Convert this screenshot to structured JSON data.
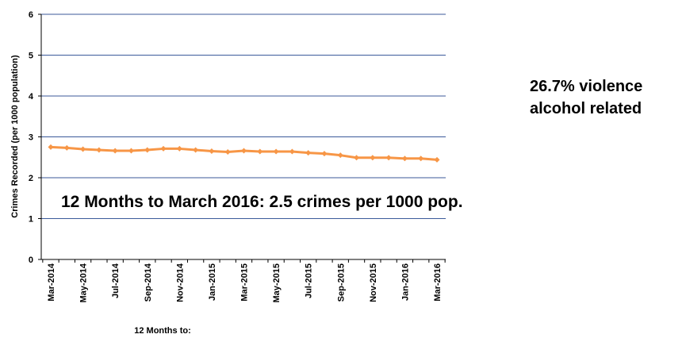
{
  "chart_data": {
    "type": "line",
    "xlabel": "12 Months to:",
    "ylabel": "Crimes Recorded (per 1000 population)",
    "ylim": [
      0,
      6
    ],
    "yticks": [
      "0",
      "1",
      "2",
      "3",
      "4",
      "5",
      "6"
    ],
    "grid": true,
    "categories": [
      "Mar-2014",
      "Apr-2014",
      "May-2014",
      "Jun-2014",
      "Jul-2014",
      "Aug-2014",
      "Sep-2014",
      "Oct-2014",
      "Nov-2014",
      "Dec-2014",
      "Jan-2015",
      "Feb-2015",
      "Mar-2015",
      "Apr-2015",
      "May-2015",
      "Jun-2015",
      "Jul-2015",
      "Aug-2015",
      "Sep-2015",
      "Oct-2015",
      "Nov-2015",
      "Dec-2015",
      "Jan-2016",
      "Feb-2016",
      "Mar-2016"
    ],
    "tick_labels": [
      "Mar-2014",
      "May-2014",
      "Jul-2014",
      "Sep-2014",
      "Nov-2014",
      "Jan-2015",
      "Mar-2015",
      "May-2015",
      "Jul-2015",
      "Sep-2015",
      "Nov-2015",
      "Jan-2016",
      "Mar-2016"
    ],
    "series": [
      {
        "color": "#f79646",
        "values": [
          2.75,
          2.73,
          2.7,
          2.68,
          2.66,
          2.66,
          2.68,
          2.71,
          2.71,
          2.68,
          2.65,
          2.63,
          2.66,
          2.64,
          2.64,
          2.64,
          2.61,
          2.59,
          2.55,
          2.49,
          2.49,
          2.49,
          2.47,
          2.47,
          2.44
        ]
      }
    ],
    "annotations": {
      "main": "12 Months to March 2016: 2.5 crimes per 1000 pop.",
      "side_line1": "26.7% violence",
      "side_line2": "alcohol related"
    }
  }
}
